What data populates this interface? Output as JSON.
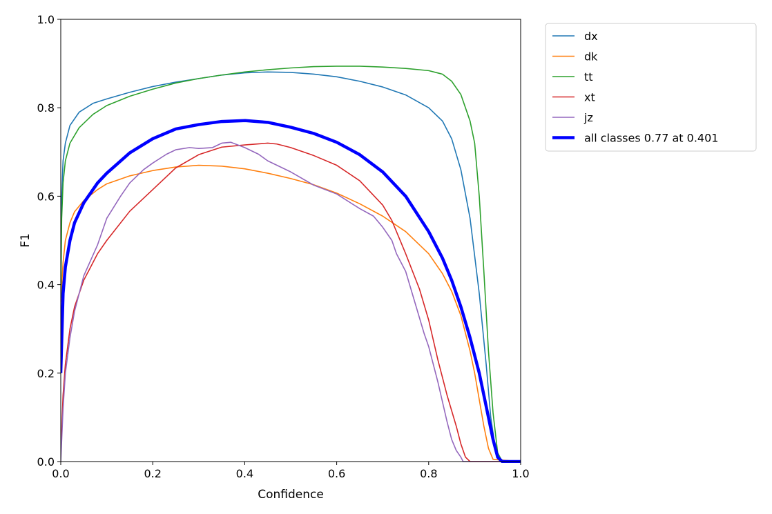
{
  "chart_data": {
    "type": "line",
    "title": "",
    "xlabel": "Confidence",
    "ylabel": "F1",
    "xlim": [
      0,
      1
    ],
    "ylim": [
      0,
      1
    ],
    "x_ticks": [
      "0.0",
      "0.2",
      "0.4",
      "0.6",
      "0.8",
      "1.0"
    ],
    "y_ticks": [
      "0.0",
      "0.2",
      "0.4",
      "0.6",
      "0.8",
      "1.0"
    ],
    "grid": false,
    "legend_position": "outside-top-right",
    "series": [
      {
        "name": "dx",
        "color": "#1f77b4",
        "x": [
          0.0,
          0.002,
          0.005,
          0.01,
          0.02,
          0.04,
          0.07,
          0.1,
          0.15,
          0.2,
          0.25,
          0.3,
          0.35,
          0.4,
          0.45,
          0.5,
          0.55,
          0.6,
          0.65,
          0.7,
          0.75,
          0.8,
          0.83,
          0.85,
          0.87,
          0.89,
          0.91,
          0.925,
          0.935,
          0.945,
          0.95,
          0.955,
          1.0
        ],
        "y": [
          0.42,
          0.6,
          0.68,
          0.72,
          0.76,
          0.79,
          0.81,
          0.82,
          0.835,
          0.848,
          0.858,
          0.866,
          0.874,
          0.879,
          0.881,
          0.88,
          0.876,
          0.87,
          0.86,
          0.847,
          0.829,
          0.8,
          0.77,
          0.73,
          0.66,
          0.55,
          0.38,
          0.22,
          0.1,
          0.03,
          0.01,
          0.0,
          0.0
        ]
      },
      {
        "name": "dk",
        "color": "#ff7f0e",
        "x": [
          0.0,
          0.005,
          0.01,
          0.02,
          0.03,
          0.05,
          0.08,
          0.1,
          0.15,
          0.2,
          0.25,
          0.3,
          0.35,
          0.4,
          0.45,
          0.5,
          0.55,
          0.6,
          0.65,
          0.7,
          0.75,
          0.8,
          0.83,
          0.85,
          0.87,
          0.89,
          0.9,
          0.91,
          0.92,
          0.93,
          0.94,
          1.0
        ],
        "y": [
          0.36,
          0.45,
          0.5,
          0.54,
          0.565,
          0.59,
          0.615,
          0.628,
          0.646,
          0.658,
          0.666,
          0.67,
          0.668,
          0.662,
          0.652,
          0.64,
          0.626,
          0.607,
          0.583,
          0.555,
          0.52,
          0.47,
          0.425,
          0.385,
          0.33,
          0.25,
          0.2,
          0.14,
          0.08,
          0.03,
          0.005,
          0.0
        ]
      },
      {
        "name": "tt",
        "color": "#2ca02c",
        "x": [
          0.0,
          0.002,
          0.005,
          0.01,
          0.02,
          0.04,
          0.07,
          0.1,
          0.15,
          0.2,
          0.25,
          0.3,
          0.35,
          0.4,
          0.45,
          0.5,
          0.55,
          0.6,
          0.65,
          0.7,
          0.75,
          0.8,
          0.83,
          0.85,
          0.87,
          0.89,
          0.9,
          0.91,
          0.92,
          0.93,
          0.94,
          0.95,
          0.96,
          1.0
        ],
        "y": [
          0.37,
          0.55,
          0.63,
          0.68,
          0.72,
          0.755,
          0.785,
          0.805,
          0.826,
          0.842,
          0.856,
          0.866,
          0.874,
          0.881,
          0.886,
          0.89,
          0.893,
          0.894,
          0.894,
          0.892,
          0.889,
          0.884,
          0.876,
          0.86,
          0.83,
          0.77,
          0.72,
          0.6,
          0.43,
          0.25,
          0.11,
          0.02,
          0.0,
          0.0
        ]
      },
      {
        "name": "xt",
        "color": "#d62728",
        "x": [
          0.0,
          0.005,
          0.01,
          0.02,
          0.03,
          0.05,
          0.08,
          0.1,
          0.15,
          0.2,
          0.25,
          0.3,
          0.35,
          0.4,
          0.45,
          0.47,
          0.5,
          0.55,
          0.6,
          0.65,
          0.7,
          0.72,
          0.75,
          0.78,
          0.8,
          0.82,
          0.84,
          0.86,
          0.87,
          0.88,
          0.89,
          1.0
        ],
        "y": [
          0.02,
          0.15,
          0.22,
          0.3,
          0.35,
          0.41,
          0.47,
          0.5,
          0.566,
          0.615,
          0.664,
          0.694,
          0.711,
          0.716,
          0.72,
          0.718,
          0.71,
          0.692,
          0.67,
          0.635,
          0.58,
          0.545,
          0.47,
          0.39,
          0.32,
          0.23,
          0.15,
          0.08,
          0.04,
          0.01,
          0.0,
          0.0
        ]
      },
      {
        "name": "jz",
        "color": "#9467bd",
        "x": [
          0.0,
          0.005,
          0.01,
          0.02,
          0.03,
          0.05,
          0.08,
          0.1,
          0.13,
          0.15,
          0.18,
          0.2,
          0.23,
          0.25,
          0.28,
          0.3,
          0.33,
          0.35,
          0.37,
          0.4,
          0.43,
          0.45,
          0.5,
          0.55,
          0.6,
          0.65,
          0.68,
          0.7,
          0.72,
          0.73,
          0.75,
          0.77,
          0.79,
          0.8,
          0.82,
          0.84,
          0.85,
          0.86,
          0.87,
          0.875,
          1.0
        ],
        "y": [
          0.0,
          0.12,
          0.2,
          0.28,
          0.34,
          0.42,
          0.49,
          0.55,
          0.6,
          0.63,
          0.66,
          0.675,
          0.695,
          0.705,
          0.71,
          0.708,
          0.71,
          0.72,
          0.722,
          0.71,
          0.695,
          0.68,
          0.655,
          0.625,
          0.605,
          0.572,
          0.555,
          0.53,
          0.5,
          0.47,
          0.43,
          0.36,
          0.29,
          0.26,
          0.18,
          0.09,
          0.05,
          0.025,
          0.01,
          0.0,
          0.0
        ]
      },
      {
        "name": "all classes 0.77 at 0.401",
        "color": "#0000ff",
        "bold": true,
        "x": [
          0.0,
          0.005,
          0.01,
          0.02,
          0.03,
          0.05,
          0.08,
          0.1,
          0.15,
          0.2,
          0.25,
          0.3,
          0.35,
          0.401,
          0.45,
          0.5,
          0.55,
          0.6,
          0.65,
          0.7,
          0.75,
          0.8,
          0.83,
          0.85,
          0.87,
          0.89,
          0.91,
          0.92,
          0.93,
          0.94,
          0.95,
          0.96,
          1.0
        ],
        "y": [
          0.2,
          0.38,
          0.44,
          0.5,
          0.54,
          0.585,
          0.63,
          0.652,
          0.698,
          0.73,
          0.752,
          0.762,
          0.769,
          0.771,
          0.767,
          0.756,
          0.742,
          0.722,
          0.694,
          0.655,
          0.6,
          0.52,
          0.46,
          0.41,
          0.35,
          0.28,
          0.2,
          0.15,
          0.1,
          0.05,
          0.01,
          0.0,
          0.0
        ]
      }
    ]
  }
}
